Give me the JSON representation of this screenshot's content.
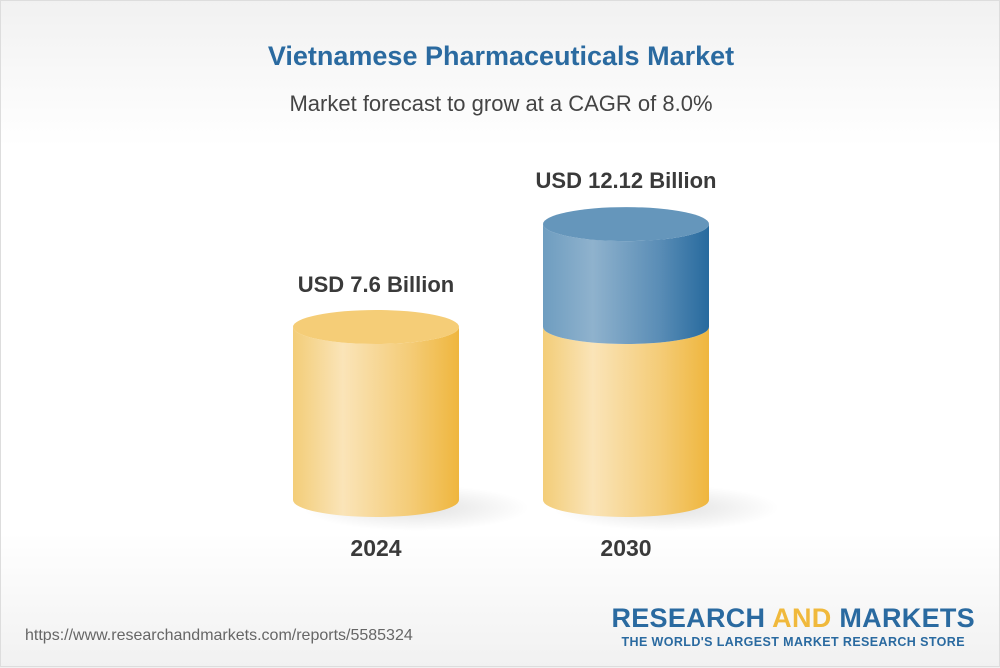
{
  "title": "Vietnamese Pharmaceuticals Market",
  "subtitle": "Market forecast to grow at a CAGR of 8.0%",
  "chart_data": {
    "type": "bar",
    "style": "3d-cylinder",
    "categories": [
      "2024",
      "2030"
    ],
    "values": [
      7.6,
      12.12
    ],
    "data_labels": [
      "USD 7.6 Billion",
      "USD 12.12 Billion"
    ],
    "unit": "USD Billion",
    "colors": {
      "base": "#f0b93c",
      "growth": "#2a6aa0"
    }
  },
  "footer": {
    "url": "https://www.researchandmarkets.com/reports/5585324",
    "logo_part1": "RESEARCH",
    "logo_part2": "AND",
    "logo_part3": "MARKETS",
    "tagline": "THE WORLD'S LARGEST MARKET RESEARCH STORE"
  }
}
